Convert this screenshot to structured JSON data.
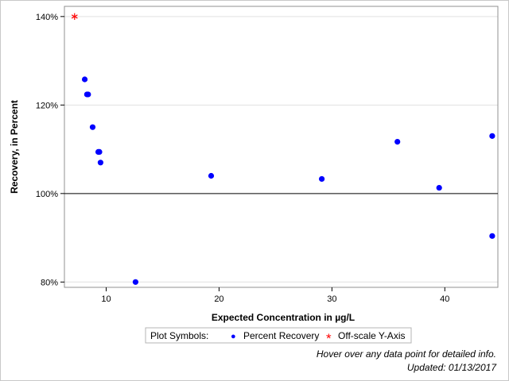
{
  "chart_data": {
    "type": "scatter",
    "xlabel": "Expected Concentration in µg/L",
    "ylabel": "Recovery, in Percent",
    "xlim": [
      6.3,
      44.7
    ],
    "ylim": [
      78.8,
      142.3
    ],
    "x_ticks": [
      10,
      20,
      30,
      40
    ],
    "x_tick_labels": [
      "10",
      "20",
      "30",
      "40"
    ],
    "y_ticks": [
      80,
      100,
      120,
      140
    ],
    "y_tick_labels": [
      "80%",
      "100%",
      "120%",
      "140%"
    ],
    "grid": "horizontal",
    "reference_line": 100,
    "series": [
      {
        "name": "Percent Recovery",
        "marker": "circle",
        "color": "#0000ff",
        "points": [
          {
            "x": 8.1,
            "y": 125.8
          },
          {
            "x": 8.3,
            "y": 122.4
          },
          {
            "x": 8.4,
            "y": 122.4
          },
          {
            "x": 8.8,
            "y": 115.0
          },
          {
            "x": 9.3,
            "y": 109.4
          },
          {
            "x": 9.4,
            "y": 109.4
          },
          {
            "x": 9.5,
            "y": 107.0
          },
          {
            "x": 12.6,
            "y": 80.0
          },
          {
            "x": 19.3,
            "y": 104.0
          },
          {
            "x": 29.1,
            "y": 103.3
          },
          {
            "x": 35.8,
            "y": 111.7
          },
          {
            "x": 39.5,
            "y": 101.3
          },
          {
            "x": 44.2,
            "y": 113.0
          },
          {
            "x": 44.2,
            "y": 90.4
          }
        ]
      },
      {
        "name": "Off-scale Y-Axis",
        "marker": "asterisk",
        "color": "#ff0000",
        "points": [
          {
            "x": 7.2,
            "y": 140.0
          }
        ]
      }
    ]
  },
  "legend": {
    "title": "Plot Symbols:",
    "items": [
      {
        "label": "Percent Recovery",
        "symbol": "●",
        "color": "#0000ff"
      },
      {
        "label": "Off-scale Y-Axis",
        "symbol": "*",
        "color": "#ff0000"
      }
    ]
  },
  "footnotes": {
    "hover": "Hover over any data point for detailed info.",
    "updated": "Updated: 01/13/2017"
  }
}
